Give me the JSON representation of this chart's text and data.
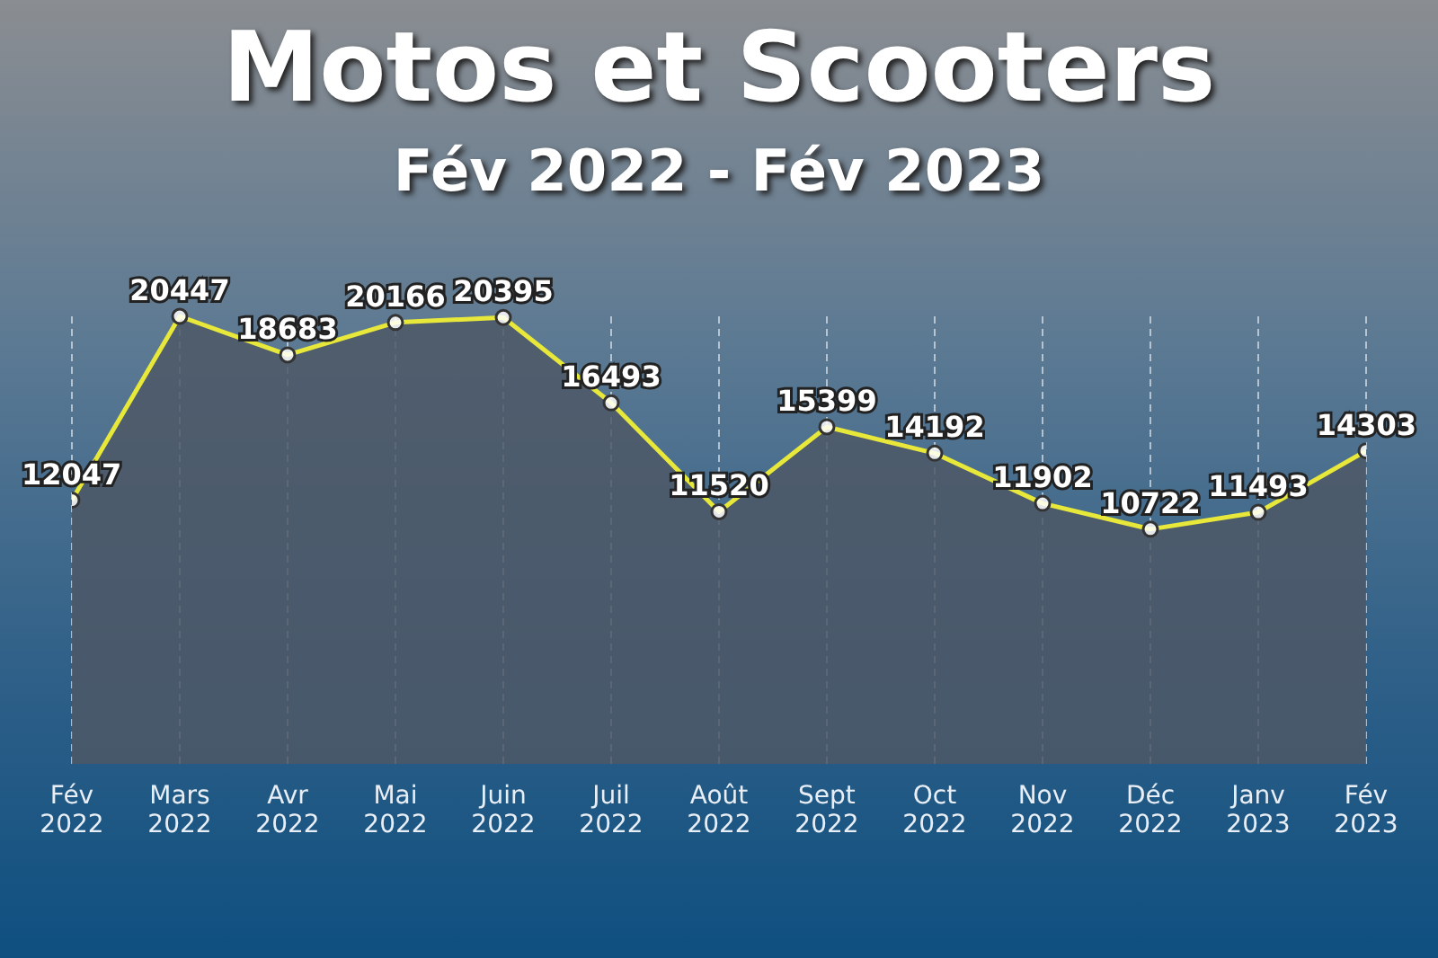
{
  "chart_data": {
    "type": "area",
    "title": "Motos et Scooters",
    "subtitle": "Fév 2022 - Fév 2023",
    "categories": [
      "Fév 2022",
      "Mars 2022",
      "Avr 2022",
      "Mai 2022",
      "Juin 2022",
      "Juil 2022",
      "Août 2022",
      "Sept 2022",
      "Oct 2022",
      "Nov 2022",
      "Déc 2022",
      "Janv 2023",
      "Fév 2023"
    ],
    "series": [
      {
        "color": "#e8e83a",
        "values": [
          12047,
          20447,
          18683,
          20166,
          20395,
          16493,
          11520,
          15399,
          14192,
          11902,
          10722,
          11493,
          14303
        ]
      }
    ],
    "data_labels": true,
    "grid": "x",
    "marker": "circle"
  }
}
